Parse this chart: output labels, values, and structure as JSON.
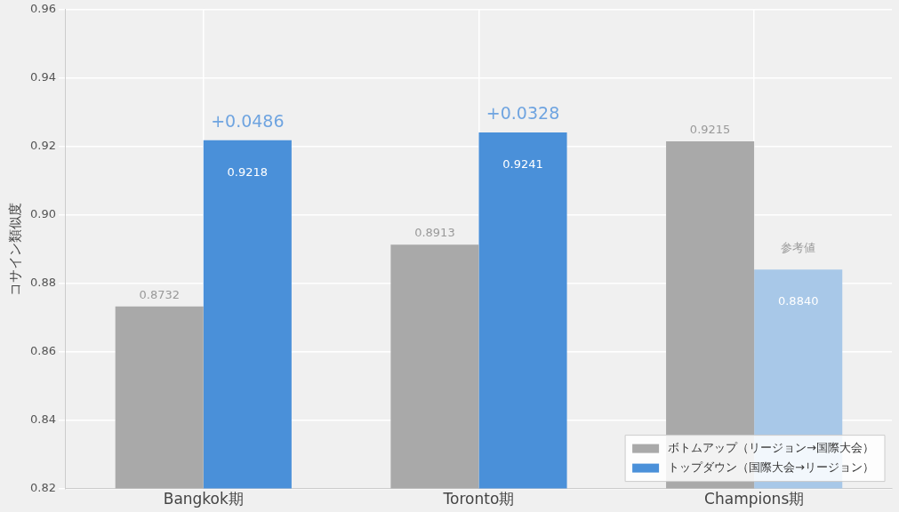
{
  "chart_data": {
    "type": "bar",
    "ylabel": "コサイン類似度",
    "categories": [
      "Bangkok期",
      "Toronto期",
      "Champions期"
    ],
    "series": [
      {
        "name": "ボトムアップ（リージョン→国際大会）",
        "color": "#a9a9a9",
        "values": [
          0.8732,
          0.8913,
          0.9215
        ],
        "value_labels": [
          "0.8732",
          "0.8913",
          "0.9215"
        ]
      },
      {
        "name": "トップダウン（国際大会→リージョン）",
        "color": "#4a90d9",
        "colors": [
          "#4a90d9",
          "#4a90d9",
          "#a8c8e8"
        ],
        "values": [
          0.9218,
          0.9241,
          0.884
        ],
        "value_labels": [
          "0.9218",
          "0.9241",
          "0.8840"
        ]
      }
    ],
    "ylim": [
      0.82,
      0.96
    ],
    "yticks": [
      0.82,
      0.84,
      0.86,
      0.88,
      {
        "value": 0.9,
        "label": "0.90"
      },
      0.92,
      0.94,
      0.96
    ],
    "annotations": [
      "+0.0486",
      "+0.0328",
      {
        "text": "参考値",
        "x": "Champions期",
        "y": 0.8885
      }
    ],
    "grid": true,
    "legend": "bottom right"
  }
}
